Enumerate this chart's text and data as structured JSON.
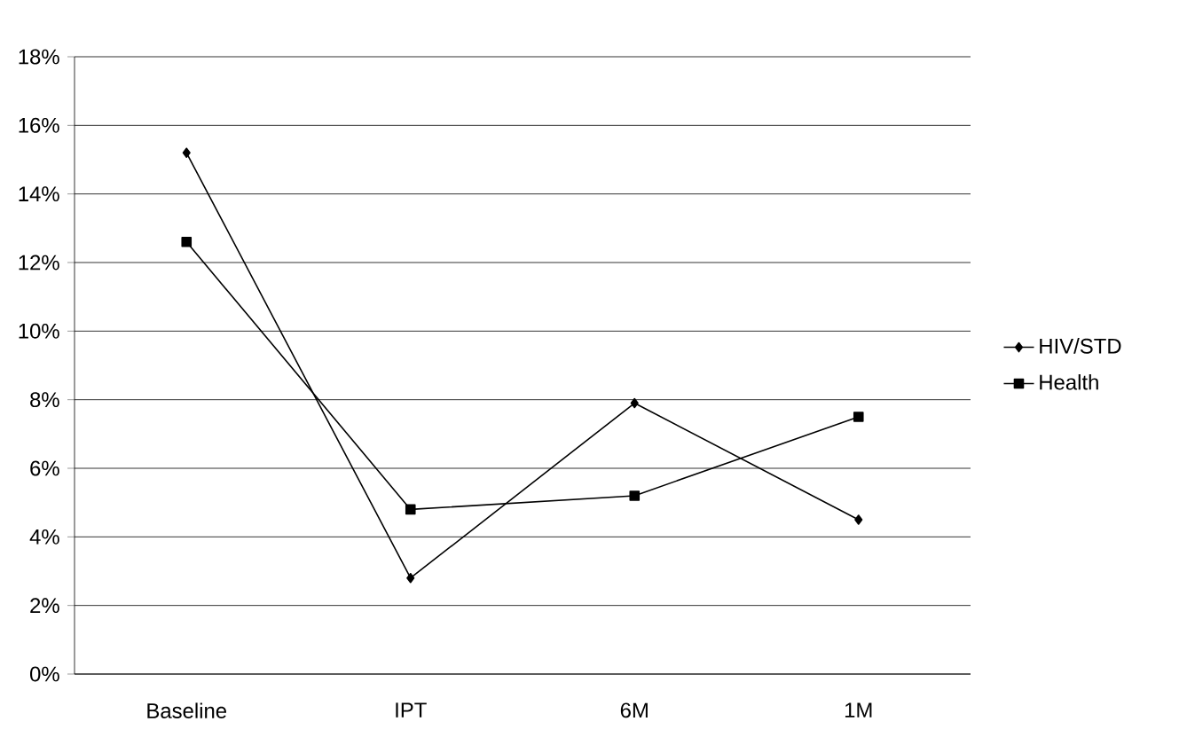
{
  "chart_data": {
    "type": "line",
    "categories": [
      "Baseline",
      "IPT",
      "6M",
      "1M"
    ],
    "series": [
      {
        "name": "HIV/STD",
        "color": "#000000",
        "marker": "diamond",
        "values": [
          15.2,
          2.8,
          7.9,
          4.5
        ]
      },
      {
        "name": "Health",
        "color": "#000000",
        "marker": "square",
        "values": [
          12.6,
          4.8,
          5.2,
          7.5
        ]
      }
    ],
    "ylim": [
      0,
      18
    ],
    "yticks": [
      {
        "value": 0,
        "label": "0%"
      },
      {
        "value": 2,
        "label": "2%"
      },
      {
        "value": 4,
        "label": "4%"
      },
      {
        "value": 6,
        "label": "6%"
      },
      {
        "value": 8,
        "label": "8%"
      },
      {
        "value": 10,
        "label": "10%"
      },
      {
        "value": 12,
        "label": "12%"
      },
      {
        "value": 14,
        "label": "14%"
      },
      {
        "value": 16,
        "label": "16%"
      },
      {
        "value": 18,
        "label": "18%"
      }
    ],
    "grid": "y",
    "legend": "right",
    "line_style": "solid"
  }
}
